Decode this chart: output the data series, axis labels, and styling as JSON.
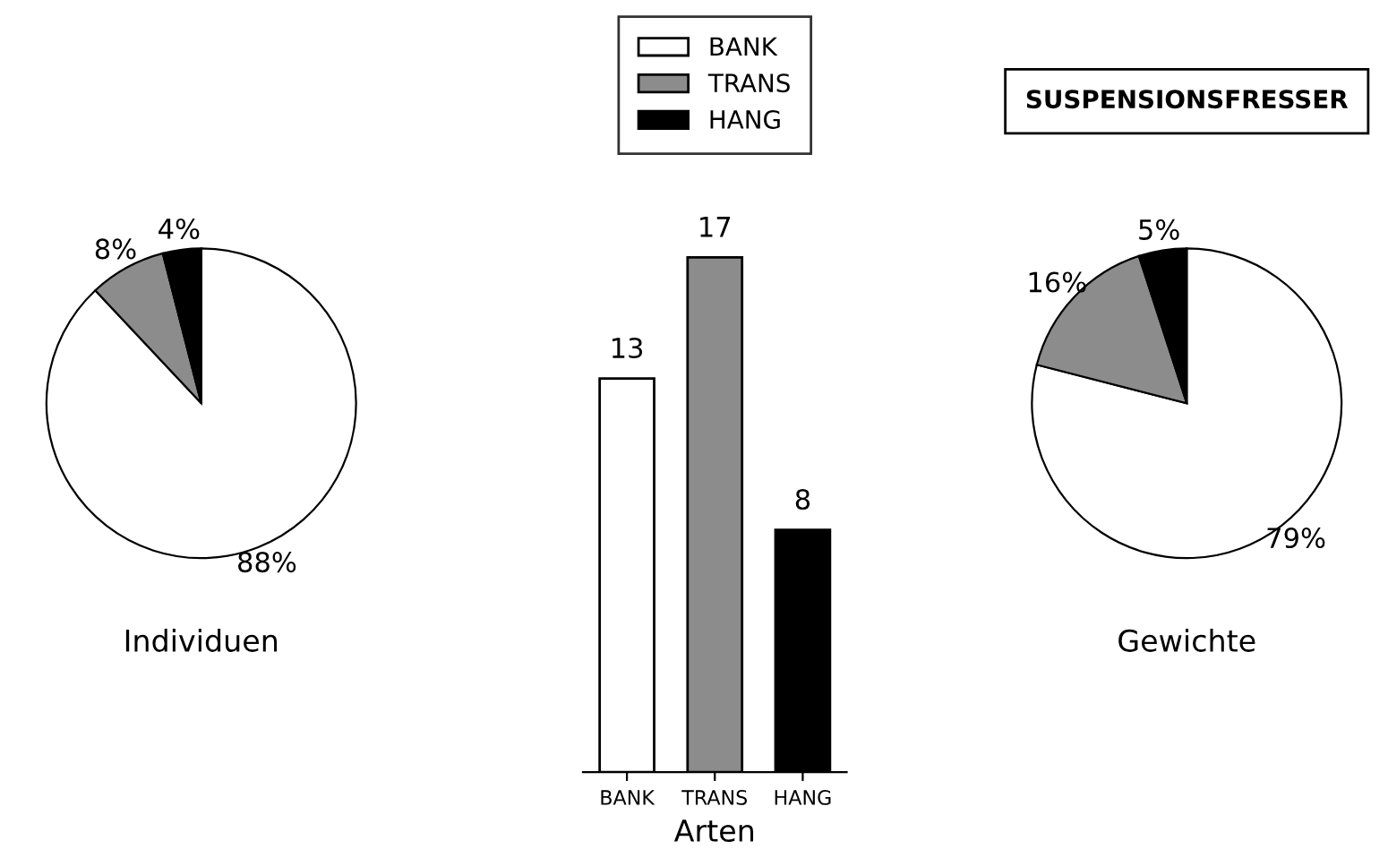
{
  "chart_data": [
    {
      "type": "pie",
      "xlabel": "Individuen",
      "categories": [
        "BANK",
        "TRANS",
        "HANG"
      ],
      "values": [
        88,
        8,
        4
      ],
      "colors": [
        "#ffffff",
        "#8c8c8c",
        "#000000"
      ],
      "value_labels": [
        "88%",
        "8%",
        "4%"
      ],
      "legend": "top right"
    },
    {
      "type": "bar",
      "xlabel": "Arten",
      "categories": [
        "BANK",
        "TRANS",
        "HANG"
      ],
      "values": [
        13,
        17,
        8
      ],
      "colors": [
        "#ffffff",
        "#8c8c8c",
        "#000000"
      ],
      "data_labels": true
    },
    {
      "type": "pie",
      "title": "SUSPENSIONSFRESSER",
      "xlabel": "Gewichte",
      "categories": [
        null,
        null,
        null
      ],
      "values": [
        79,
        16,
        5
      ],
      "colors": [
        "#ffffff",
        "#8c8c8c",
        "#000000"
      ],
      "value_labels": [
        "79%",
        "16%",
        "5%"
      ]
    }
  ]
}
